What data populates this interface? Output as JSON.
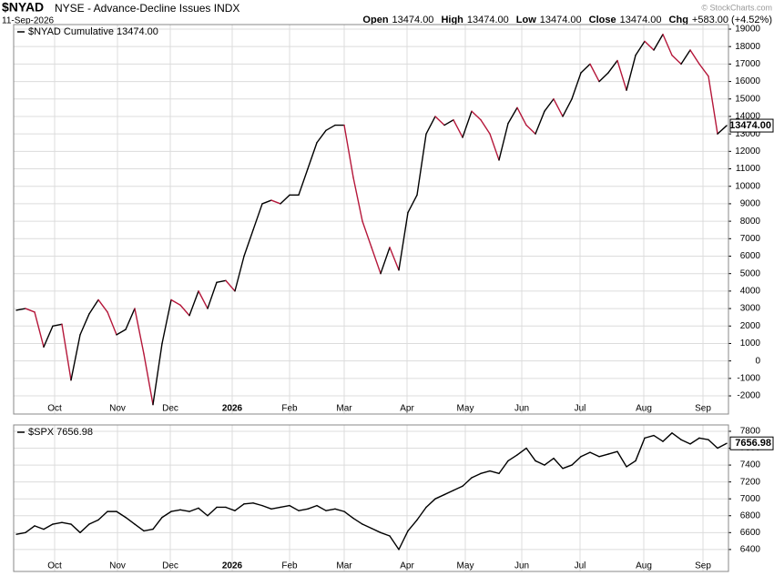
{
  "header": {
    "symbol": "$NYAD",
    "name": "NYSE - Advance-Decline Issues INDX",
    "date": "11-Sep-2026",
    "quote": [
      {
        "label": "Open",
        "value": "13474.00"
      },
      {
        "label": "High",
        "value": "13474.00"
      },
      {
        "label": "Low",
        "value": "13474.00"
      },
      {
        "label": "Close",
        "value": "13474.00"
      },
      {
        "label": "Chg",
        "value": "+583.00 (+4.52%)"
      }
    ],
    "watermark": "© StockCharts.com"
  },
  "chart_data": [
    {
      "type": "line",
      "legend": "$NYAD Cumulative 13474.00",
      "up_color": "#000000",
      "down_color": "#b5173a",
      "grid": true,
      "values": [
        2900,
        3000,
        2800,
        800,
        2000,
        2100,
        -1100,
        1500,
        2700,
        3500,
        2800,
        1500,
        1800,
        3000,
        400,
        -2500,
        1000,
        3500,
        3200,
        2600,
        4000,
        3000,
        4500,
        4600,
        4000,
        6000,
        7500,
        9000,
        9200,
        9000,
        9500,
        9500,
        11000,
        12500,
        13200,
        13500,
        13500,
        10500,
        8000,
        6500,
        5000,
        6500,
        5200,
        8500,
        9500,
        13000,
        14000,
        13500,
        13800,
        12800,
        14300,
        13800,
        13000,
        11500,
        13600,
        14500,
        13500,
        13000,
        14300,
        15000,
        14000,
        15000,
        16500,
        17000,
        16000,
        16500,
        17200,
        15500,
        17500,
        18300,
        17800,
        18700,
        17500,
        17000,
        17800,
        17000,
        16300,
        13000,
        13474
      ],
      "last_label": "13474.00",
      "xlim": [
        -0.3,
        78.2
      ],
      "xticks": [
        {
          "value": 4.2,
          "label": "Oct"
        },
        {
          "value": 11.1,
          "label": "Nov"
        },
        {
          "value": 16.9,
          "label": "Dec"
        },
        {
          "value": 23.7,
          "label": "2026"
        },
        {
          "value": 30,
          "label": "Feb"
        },
        {
          "value": 36,
          "label": "Mar"
        },
        {
          "value": 42.9,
          "label": "Apr"
        },
        {
          "value": 49.3,
          "label": "May"
        },
        {
          "value": 55.5,
          "label": "Jun"
        },
        {
          "value": 61.9,
          "label": "Jul"
        },
        {
          "value": 68.9,
          "label": "Aug"
        },
        {
          "value": 75.4,
          "label": "Sep"
        }
      ],
      "ylim": [
        -3040,
        19260
      ],
      "yticks": [
        -2000,
        -1000,
        0,
        1000,
        2000,
        3000,
        4000,
        5000,
        6000,
        7000,
        8000,
        9000,
        10000,
        11000,
        12000,
        13000,
        14000,
        15000,
        16000,
        17000,
        18000,
        19000
      ]
    },
    {
      "type": "line",
      "legend": "$SPX 7656.98",
      "color": "#000000",
      "grid": true,
      "values": [
        6580,
        6600,
        6680,
        6640,
        6700,
        6720,
        6700,
        6600,
        6700,
        6750,
        6850,
        6850,
        6780,
        6700,
        6620,
        6640,
        6780,
        6850,
        6870,
        6850,
        6890,
        6800,
        6900,
        6900,
        6860,
        6940,
        6950,
        6920,
        6880,
        6900,
        6920,
        6860,
        6880,
        6920,
        6860,
        6880,
        6850,
        6770,
        6700,
        6650,
        6600,
        6560,
        6400,
        6620,
        6750,
        6900,
        7000,
        7050,
        7100,
        7150,
        7250,
        7300,
        7330,
        7300,
        7450,
        7520,
        7600,
        7450,
        7400,
        7480,
        7360,
        7400,
        7500,
        7550,
        7500,
        7530,
        7560,
        7380,
        7450,
        7720,
        7750,
        7680,
        7780,
        7700,
        7650,
        7720,
        7700,
        7600,
        7656.98
      ],
      "last_label": "7656.98",
      "xlim": [
        -0.3,
        78.2
      ],
      "xticks": [
        {
          "value": 4.2,
          "label": "Oct"
        },
        {
          "value": 11.1,
          "label": "Nov"
        },
        {
          "value": 16.9,
          "label": "Dec"
        },
        {
          "value": 23.7,
          "label": "2026"
        },
        {
          "value": 30,
          "label": "Feb"
        },
        {
          "value": 36,
          "label": "Mar"
        },
        {
          "value": 42.9,
          "label": "Apr"
        },
        {
          "value": 49.3,
          "label": "May"
        },
        {
          "value": 55.5,
          "label": "Jun"
        },
        {
          "value": 61.9,
          "label": "Jul"
        },
        {
          "value": 68.9,
          "label": "Aug"
        },
        {
          "value": 75.4,
          "label": "Sep"
        }
      ],
      "ylim": [
        6140,
        7875
      ],
      "yticks": [
        6400,
        6600,
        6800,
        7000,
        7200,
        7400,
        7600,
        7800
      ]
    }
  ]
}
